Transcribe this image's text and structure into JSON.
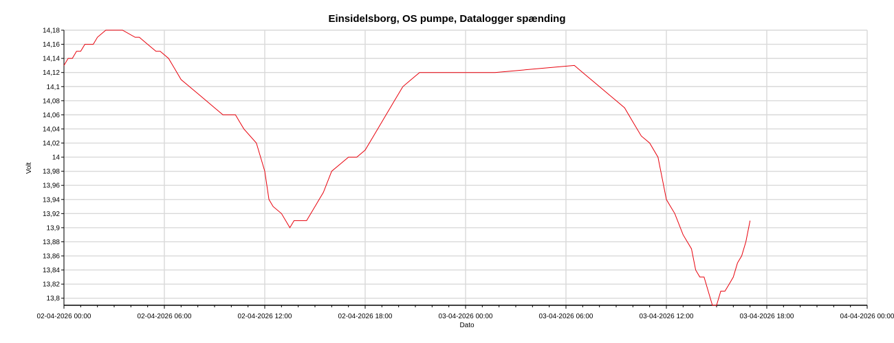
{
  "chart_data": {
    "type": "line",
    "title": "Einsidelsborg, OS pumpe, Datalogger spænding",
    "xlabel": "Dato",
    "ylabel": "Volt",
    "x_tick_labels": [
      "02-04-2026 00:00",
      "02-04-2026 06:00",
      "02-04-2026 12:00",
      "02-04-2026 18:00",
      "03-04-2026 00:00",
      "03-04-2026 06:00",
      "03-04-2026 12:00",
      "03-04-2026 18:00",
      "04-04-2026 00:00"
    ],
    "y_tick_labels": [
      "13,8",
      "13,82",
      "13,84",
      "13,86",
      "13,88",
      "13,9",
      "13,92",
      "13,94",
      "13,96",
      "13,98",
      "14",
      "14,02",
      "14,04",
      "14,06",
      "14,08",
      "14,1",
      "14,12",
      "14,14",
      "14,16",
      "14,18"
    ],
    "xlim": [
      "2026-04-02 00:00",
      "2026-04-04 00:00"
    ],
    "ylim": [
      13.79,
      14.18
    ],
    "grid": true,
    "series": [
      {
        "color": "#e8000b",
        "x": [
          "2026-04-02 00:00",
          "2026-04-02 00:15",
          "2026-04-02 00:30",
          "2026-04-02 00:45",
          "2026-04-02 01:00",
          "2026-04-02 01:15",
          "2026-04-02 01:45",
          "2026-04-02 02:00",
          "2026-04-02 02:30",
          "2026-04-02 03:00",
          "2026-04-02 03:30",
          "2026-04-02 04:15",
          "2026-04-02 04:30",
          "2026-04-02 05:00",
          "2026-04-02 05:30",
          "2026-04-02 05:45",
          "2026-04-02 06:15",
          "2026-04-02 06:30",
          "2026-04-02 06:45",
          "2026-04-02 07:00",
          "2026-04-02 07:30",
          "2026-04-02 08:00",
          "2026-04-02 08:30",
          "2026-04-02 09:00",
          "2026-04-02 09:30",
          "2026-04-02 10:00",
          "2026-04-02 10:15",
          "2026-04-02 10:30",
          "2026-04-02 10:45",
          "2026-04-02 11:30",
          "2026-04-02 12:00",
          "2026-04-02 12:15",
          "2026-04-02 12:30",
          "2026-04-02 13:00",
          "2026-04-02 13:30",
          "2026-04-02 13:45",
          "2026-04-02 14:00",
          "2026-04-02 14:30",
          "2026-04-02 15:00",
          "2026-04-02 15:15",
          "2026-04-02 15:30",
          "2026-04-02 16:00",
          "2026-04-02 16:30",
          "2026-04-02 17:00",
          "2026-04-02 17:30",
          "2026-04-02 18:00",
          "2026-04-02 18:30",
          "2026-04-02 19:00",
          "2026-04-02 19:15",
          "2026-04-02 19:30",
          "2026-04-02 19:45",
          "2026-04-02 20:15",
          "2026-04-02 20:45",
          "2026-04-02 21:15",
          "2026-04-03 01:45",
          "2026-04-03 06:30",
          "2026-04-03 07:00",
          "2026-04-03 07:30",
          "2026-04-03 08:00",
          "2026-04-03 08:30",
          "2026-04-03 09:00",
          "2026-04-03 09:30",
          "2026-04-03 10:00",
          "2026-04-03 10:30",
          "2026-04-03 11:00",
          "2026-04-03 11:30",
          "2026-04-03 11:45",
          "2026-04-03 12:00",
          "2026-04-03 12:15",
          "2026-04-03 12:30",
          "2026-04-03 13:00",
          "2026-04-03 13:30",
          "2026-04-03 13:45",
          "2026-04-03 14:00",
          "2026-04-03 14:15",
          "2026-04-03 14:45",
          "2026-04-03 15:00",
          "2026-04-03 15:15",
          "2026-04-03 15:30",
          "2026-04-03 15:45",
          "2026-04-03 16:00",
          "2026-04-03 16:15",
          "2026-04-03 16:30",
          "2026-04-03 16:45",
          "2026-04-03 17:00"
        ],
        "y": [
          14.13,
          14.14,
          14.14,
          14.15,
          14.15,
          14.16,
          14.16,
          14.17,
          14.18,
          14.18,
          14.18,
          14.17,
          14.17,
          14.16,
          14.15,
          14.15,
          14.14,
          14.13,
          14.12,
          14.11,
          14.1,
          14.09,
          14.08,
          14.07,
          14.06,
          14.06,
          14.06,
          14.05,
          14.04,
          14.02,
          13.98,
          13.94,
          13.93,
          13.92,
          13.9,
          13.91,
          13.91,
          13.91,
          13.93,
          13.94,
          13.95,
          13.98,
          13.99,
          14.0,
          14.0,
          14.01,
          14.03,
          14.05,
          14.06,
          14.07,
          14.08,
          14.1,
          14.11,
          14.12,
          14.12,
          14.13,
          14.12,
          14.11,
          14.1,
          14.09,
          14.08,
          14.07,
          14.05,
          14.03,
          14.02,
          14.0,
          13.97,
          13.94,
          13.93,
          13.92,
          13.89,
          13.87,
          13.84,
          13.83,
          13.83,
          13.79,
          13.79,
          13.81,
          13.81,
          13.82,
          13.83,
          13.85,
          13.86,
          13.88,
          13.91
        ]
      }
    ]
  }
}
